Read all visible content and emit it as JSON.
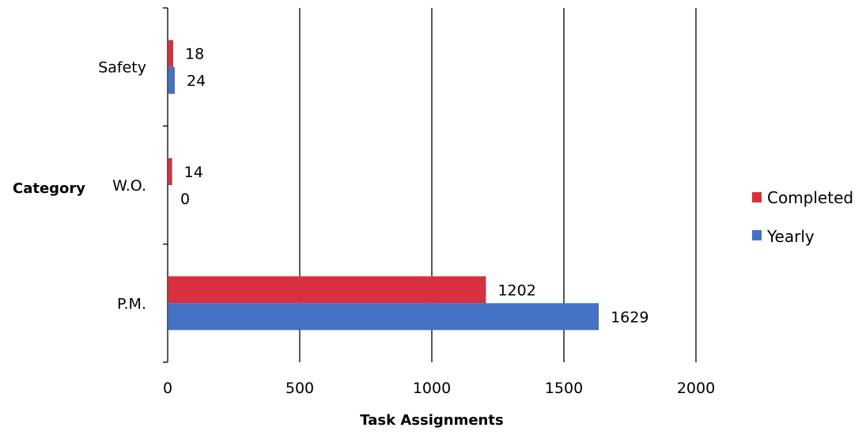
{
  "chart_data": {
    "type": "bar",
    "orientation": "horizontal",
    "categories": [
      "Safety",
      "W.O.",
      "P.M."
    ],
    "series": [
      {
        "name": "Completed",
        "values": [
          18,
          14,
          1202
        ],
        "color": "#d9303f"
      },
      {
        "name": "Yearly",
        "values": [
          24,
          0,
          1629
        ],
        "color": "#4472c4"
      }
    ],
    "data_labels": {
      "Completed": [
        "18",
        "14",
        "1202"
      ],
      "Yearly": [
        "24",
        "0",
        "1629"
      ]
    },
    "xlabel": "Task Assignments",
    "ylabel": "Category",
    "xlim": [
      0,
      2000
    ],
    "xticks": [
      0,
      500,
      1000,
      1500,
      2000
    ],
    "xtick_labels": [
      "0",
      "500",
      "1000",
      "1500",
      "2000"
    ],
    "grid": "vertical major gridlines",
    "legend": {
      "position": "right",
      "entries": [
        "Completed",
        "Yearly"
      ]
    }
  }
}
